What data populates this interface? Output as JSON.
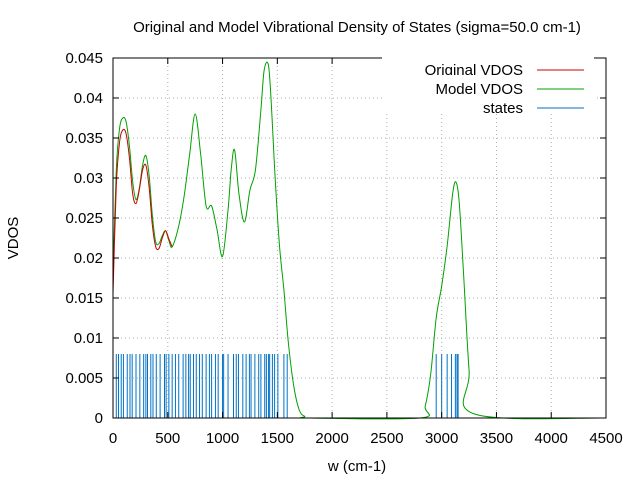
{
  "chart_data": {
    "type": "line",
    "title": "Original and Model Vibrational Density of States (sigma=50.0 cm-1)",
    "xlabel": "w (cm-1)",
    "ylabel": "VDOS",
    "xlim": [
      0,
      4500
    ],
    "ylim": [
      0,
      0.045
    ],
    "xticks": [
      "0",
      "500",
      "1000",
      "1500",
      "2000",
      "2500",
      "3000",
      "3500",
      "4000",
      "4500"
    ],
    "yticks": [
      "0",
      "0.005",
      "0.01",
      "0.015",
      "0.02",
      "0.025",
      "0.03",
      "0.035",
      "0.04",
      "0.045"
    ],
    "grid": true,
    "legend_position": "top-right",
    "series": [
      {
        "name": "Original VDOS",
        "color": "#cc0000",
        "x": [
          0,
          30,
          60,
          90,
          120,
          150,
          180,
          210,
          240,
          270,
          300,
          330,
          360,
          390,
          420,
          450,
          480,
          510,
          540
        ],
        "y": [
          0.0155,
          0.029,
          0.0345,
          0.036,
          0.0355,
          0.0325,
          0.028,
          0.0268,
          0.0285,
          0.031,
          0.0316,
          0.0288,
          0.024,
          0.0214,
          0.0212,
          0.0225,
          0.0234,
          0.0224,
          0.0214
        ]
      },
      {
        "name": "Model VDOS",
        "color": "#00a000",
        "x": [
          0,
          30,
          60,
          90,
          120,
          150,
          180,
          210,
          240,
          270,
          300,
          330,
          360,
          390,
          420,
          450,
          480,
          510,
          540,
          600,
          650,
          700,
          750,
          800,
          850,
          900,
          950,
          1000,
          1050,
          1080,
          1110,
          1150,
          1200,
          1250,
          1300,
          1350,
          1380,
          1420,
          1450,
          1480,
          1520,
          1560,
          1600,
          1650,
          1700,
          1750,
          1800,
          2800,
          2850,
          2900,
          2950,
          3000,
          3050,
          3100,
          3130,
          3160,
          3200,
          3250,
          3300,
          4500
        ],
        "y": [
          0.0175,
          0.031,
          0.0362,
          0.0375,
          0.037,
          0.034,
          0.0295,
          0.0273,
          0.0287,
          0.0316,
          0.0328,
          0.0303,
          0.0252,
          0.022,
          0.0218,
          0.0228,
          0.0234,
          0.0222,
          0.0214,
          0.024,
          0.0278,
          0.033,
          0.038,
          0.033,
          0.0265,
          0.0265,
          0.0235,
          0.0202,
          0.026,
          0.0312,
          0.0335,
          0.028,
          0.0245,
          0.0285,
          0.031,
          0.0385,
          0.0435,
          0.044,
          0.038,
          0.03,
          0.0215,
          0.016,
          0.0095,
          0.004,
          0.001,
          0.0002,
          0.0,
          0.0,
          0.0015,
          0.0055,
          0.0125,
          0.0165,
          0.0215,
          0.028,
          0.0295,
          0.027,
          0.018,
          0.006,
          0.0005,
          0.0
        ]
      },
      {
        "name": "states",
        "color": "#0072c6",
        "type": "impulse",
        "height": 0.008,
        "x": [
          30,
          50,
          75,
          95,
          130,
          155,
          175,
          210,
          245,
          280,
          300,
          315,
          345,
          365,
          395,
          430,
          470,
          485,
          510,
          540,
          570,
          600,
          640,
          665,
          690,
          705,
          735,
          760,
          790,
          815,
          850,
          880,
          900,
          935,
          960,
          1000,
          1010,
          1050,
          1100,
          1125,
          1145,
          1185,
          1215,
          1245,
          1260,
          1295,
          1330,
          1350,
          1385,
          1400,
          1420,
          1430,
          1455,
          1475,
          1505,
          1560,
          1590,
          2950,
          3000,
          3050,
          3090,
          3125,
          3140,
          3150
        ]
      }
    ]
  }
}
